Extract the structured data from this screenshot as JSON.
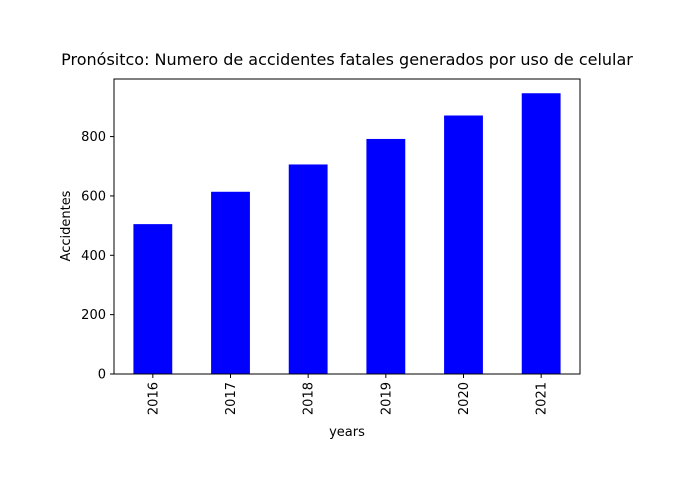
{
  "chart_data": {
    "type": "bar",
    "title": "Pronósitco: Numero de accidentes fatales generados por uso de celular",
    "xlabel": "years",
    "ylabel": "Accidentes",
    "categories": [
      "2016",
      "2017",
      "2018",
      "2019",
      "2020",
      "2021"
    ],
    "values": [
      505,
      614,
      706,
      792,
      871,
      946
    ],
    "ylim": [
      0,
      994
    ],
    "yticks": [
      0,
      200,
      400,
      600,
      800
    ],
    "bar_color": "#0000ff",
    "grid": false,
    "legend": "none"
  }
}
